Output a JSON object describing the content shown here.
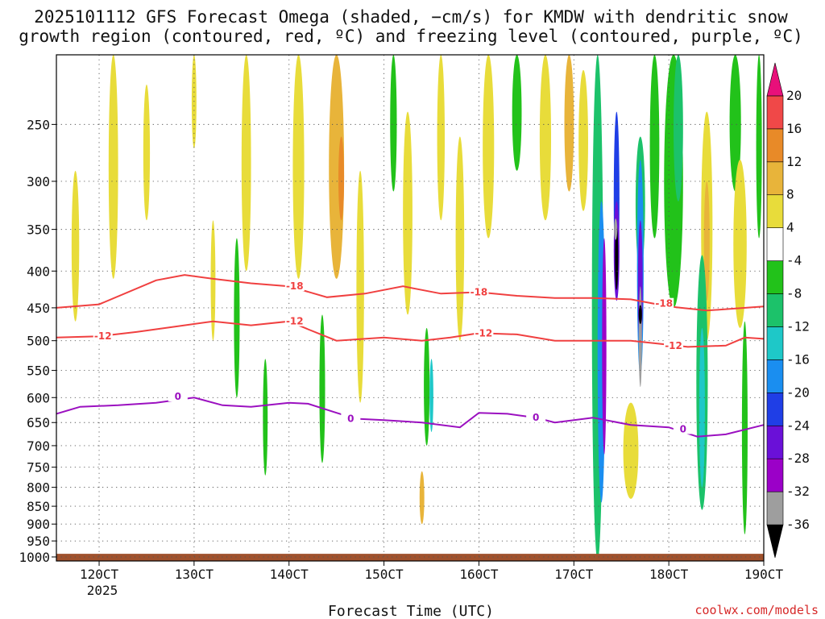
{
  "chart_data": {
    "type": "heatmap",
    "title_line1": "2025101112 GFS Forecast Omega (shaded, −cm/s) for KMDW with dendritic snow",
    "title_line2": "growth region (contoured, red, ºC) and freezing level (contoured, purple, ºC)",
    "xlabel": "Forecast Time (UTC)",
    "x_year_label": "2025",
    "x_ticks": [
      {
        "label": "120CT",
        "value": 120
      },
      {
        "label": "130CT",
        "value": 130
      },
      {
        "label": "140CT",
        "value": 140
      },
      {
        "label": "150CT",
        "value": 150
      },
      {
        "label": "160CT",
        "value": 160
      },
      {
        "label": "170CT",
        "value": 170
      },
      {
        "label": "180CT",
        "value": 180
      },
      {
        "label": "190CT",
        "value": 190
      }
    ],
    "xlim": [
      115.5,
      190
    ],
    "y_ticks": [
      "250",
      "300",
      "350",
      "400",
      "450",
      "500",
      "550",
      "600",
      "650",
      "700",
      "750",
      "800",
      "850",
      "900",
      "950",
      "1000"
    ],
    "ylim_hpa": [
      200,
      1013
    ],
    "y_scale": "log-pressure",
    "grid": true,
    "colorbar": {
      "colors": [
        "#000000",
        "#9e9e9e",
        "#9b00c8",
        "#6a10d8",
        "#1f3ee6",
        "#1a8ef0",
        "#1ec8c8",
        "#1cc26a",
        "#22c21a",
        "#ffffff",
        "#e8dc3a",
        "#e8b43a",
        "#e88a28",
        "#f04848",
        "#e8107a"
      ],
      "labels": [
        "-36",
        "-32",
        "-28",
        "-24",
        "-20",
        "-16",
        "-12",
        "-8",
        "-4",
        "4",
        "8",
        "12",
        "16",
        "20"
      ],
      "extend": "both"
    },
    "omega_cells": [
      {
        "x": 117.5,
        "p": 380,
        "dx": 0.8,
        "dp": 90,
        "level": "4-8"
      },
      {
        "x": 121.5,
        "p": 300,
        "dx": 1.0,
        "dp": 110,
        "level": "4-8"
      },
      {
        "x": 125,
        "p": 280,
        "dx": 0.7,
        "dp": 60,
        "level": "4-8"
      },
      {
        "x": 130,
        "p": 230,
        "dx": 0.5,
        "dp": 40,
        "level": "4-8"
      },
      {
        "x": 132,
        "p": 420,
        "dx": 0.5,
        "dp": 80,
        "level": "4-8"
      },
      {
        "x": 134.5,
        "p": 480,
        "dx": 0.6,
        "dp": 120,
        "level": "-4--8"
      },
      {
        "x": 135.5,
        "p": 300,
        "dx": 1.0,
        "dp": 100,
        "level": "4-8"
      },
      {
        "x": 137.5,
        "p": 650,
        "dx": 0.5,
        "dp": 120,
        "level": "-4--8"
      },
      {
        "x": 141,
        "p": 280,
        "dx": 1.2,
        "dp": 130,
        "level": "4-8"
      },
      {
        "x": 145,
        "p": 300,
        "dx": 1.6,
        "dp": 110,
        "level": "8-12"
      },
      {
        "x": 145.5,
        "p": 300,
        "dx": 0.6,
        "dp": 40,
        "level": "12-16"
      },
      {
        "x": 143.5,
        "p": 600,
        "dx": 0.6,
        "dp": 140,
        "level": "-4--8"
      },
      {
        "x": 147.5,
        "p": 450,
        "dx": 0.8,
        "dp": 160,
        "level": "4-8"
      },
      {
        "x": 151,
        "p": 240,
        "dx": 0.7,
        "dp": 70,
        "level": "-4--8"
      },
      {
        "x": 152.5,
        "p": 350,
        "dx": 1.0,
        "dp": 110,
        "level": "4-8"
      },
      {
        "x": 154.5,
        "p": 590,
        "dx": 0.6,
        "dp": 110,
        "level": "-4--8"
      },
      {
        "x": 155,
        "p": 600,
        "dx": 0.4,
        "dp": 70,
        "level": "-12--16"
      },
      {
        "x": 154,
        "p": 830,
        "dx": 0.5,
        "dp": 70,
        "level": "8-12"
      },
      {
        "x": 156,
        "p": 260,
        "dx": 0.8,
        "dp": 80,
        "level": "4-8"
      },
      {
        "x": 158,
        "p": 380,
        "dx": 0.9,
        "dp": 120,
        "level": "4-8"
      },
      {
        "x": 161,
        "p": 280,
        "dx": 1.2,
        "dp": 80,
        "level": "4-8"
      },
      {
        "x": 164,
        "p": 230,
        "dx": 1.0,
        "dp": 60,
        "level": "-4--8"
      },
      {
        "x": 167,
        "p": 250,
        "dx": 1.2,
        "dp": 90,
        "level": "4-8"
      },
      {
        "x": 169.5,
        "p": 230,
        "dx": 1.0,
        "dp": 80,
        "level": "8-12"
      },
      {
        "x": 171,
        "p": 270,
        "dx": 1.0,
        "dp": 60,
        "level": "4-8"
      },
      {
        "x": 172.5,
        "p": 620,
        "dx": 1.2,
        "dp": 420,
        "level": "-8--12"
      },
      {
        "x": 172.9,
        "p": 580,
        "dx": 0.8,
        "dp": 260,
        "level": "-16--20"
      },
      {
        "x": 173.2,
        "p": 540,
        "dx": 0.45,
        "dp": 180,
        "level": "-28--32"
      },
      {
        "x": 174.5,
        "p": 330,
        "dx": 0.6,
        "dp": 90,
        "level": "-20--24"
      },
      {
        "x": 174.5,
        "p": 380,
        "dx": 0.6,
        "dp": 60,
        "level": "-24--28"
      },
      {
        "x": 174.5,
        "p": 385,
        "dx": 0.3,
        "dp": 40,
        "level": "<-36"
      },
      {
        "x": 174.4,
        "p": 350,
        "dx": 0.3,
        "dp": 12,
        "level": "-32--36"
      },
      {
        "x": 176,
        "p": 720,
        "dx": 1.6,
        "dp": 110,
        "level": "4-8"
      },
      {
        "x": 177,
        "p": 330,
        "dx": 1.0,
        "dp": 70,
        "level": "-8--12"
      },
      {
        "x": 177,
        "p": 420,
        "dx": 0.7,
        "dp": 140,
        "level": "-16--20"
      },
      {
        "x": 177,
        "p": 430,
        "dx": 0.5,
        "dp": 90,
        "level": "-24--28"
      },
      {
        "x": 177,
        "p": 500,
        "dx": 0.3,
        "dp": 80,
        "level": "-32--36"
      },
      {
        "x": 177,
        "p": 460,
        "dx": 0.22,
        "dp": 14,
        "level": "<-36"
      },
      {
        "x": 178.5,
        "p": 270,
        "dx": 1.0,
        "dp": 90,
        "level": "-4--8"
      },
      {
        "x": 180.5,
        "p": 300,
        "dx": 2.0,
        "dp": 150,
        "level": "-4--8"
      },
      {
        "x": 181,
        "p": 260,
        "dx": 1.0,
        "dp": 60,
        "level": "-8--12"
      },
      {
        "x": 184,
        "p": 370,
        "dx": 1.2,
        "dp": 130,
        "level": "4-8"
      },
      {
        "x": 184,
        "p": 370,
        "dx": 0.6,
        "dp": 70,
        "level": "8-12"
      },
      {
        "x": 183.5,
        "p": 620,
        "dx": 1.2,
        "dp": 240,
        "level": "-8--12"
      },
      {
        "x": 183.5,
        "p": 640,
        "dx": 0.6,
        "dp": 160,
        "level": "-12--16"
      },
      {
        "x": 187,
        "p": 240,
        "dx": 1.2,
        "dp": 70,
        "level": "-4--8"
      },
      {
        "x": 187.5,
        "p": 380,
        "dx": 1.4,
        "dp": 100,
        "level": "4-8"
      },
      {
        "x": 188,
        "p": 700,
        "dx": 0.6,
        "dp": 230,
        "level": "-4--8"
      },
      {
        "x": 189.5,
        "p": 260,
        "dx": 0.6,
        "dp": 100,
        "level": "-4--8"
      }
    ],
    "contours": [
      {
        "name": "-18",
        "color": "#f04040",
        "points": [
          [
            115.5,
            450
          ],
          [
            120,
            445
          ],
          [
            126,
            412
          ],
          [
            129,
            405
          ],
          [
            132,
            410
          ],
          [
            136,
            416
          ],
          [
            140,
            420
          ],
          [
            144,
            435
          ],
          [
            148,
            430
          ],
          [
            152,
            420
          ],
          [
            156,
            430
          ],
          [
            160,
            428
          ],
          [
            164,
            433
          ],
          [
            168,
            436
          ],
          [
            172,
            436
          ],
          [
            176,
            438
          ],
          [
            180,
            448
          ],
          [
            184,
            454
          ],
          [
            186,
            452
          ],
          [
            190,
            448
          ]
        ],
        "labels": [
          {
            "x": 140.6,
            "p": 420,
            "text": "-18"
          },
          {
            "x": 160,
            "p": 428,
            "text": "-18"
          },
          {
            "x": 179.5,
            "p": 444,
            "text": "-18"
          }
        ]
      },
      {
        "name": "-12",
        "color": "#f04040",
        "points": [
          [
            115.5,
            495
          ],
          [
            120,
            493
          ],
          [
            124,
            486
          ],
          [
            128,
            478
          ],
          [
            132,
            470
          ],
          [
            136,
            476
          ],
          [
            140,
            470
          ],
          [
            142,
            482
          ],
          [
            145,
            500
          ],
          [
            150,
            495
          ],
          [
            154,
            500
          ],
          [
            157,
            495
          ],
          [
            160,
            488
          ],
          [
            164,
            490
          ],
          [
            168,
            500
          ],
          [
            172,
            500
          ],
          [
            176,
            500
          ],
          [
            179,
            505
          ],
          [
            182,
            510
          ],
          [
            186,
            508
          ],
          [
            188,
            495
          ],
          [
            190,
            497
          ]
        ],
        "labels": [
          {
            "x": 120.4,
            "p": 493,
            "text": "-12"
          },
          {
            "x": 140.6,
            "p": 470,
            "text": "-12"
          },
          {
            "x": 160.5,
            "p": 488,
            "text": "-12"
          },
          {
            "x": 180.5,
            "p": 508,
            "text": "-12"
          }
        ]
      },
      {
        "name": "0",
        "color": "#9b10c0",
        "points": [
          [
            115.5,
            632
          ],
          [
            118,
            618
          ],
          [
            122,
            615
          ],
          [
            126,
            610
          ],
          [
            130,
            600
          ],
          [
            133,
            615
          ],
          [
            136,
            618
          ],
          [
            140,
            610
          ],
          [
            142,
            612
          ],
          [
            145,
            630
          ],
          [
            147,
            642
          ],
          [
            150,
            645
          ],
          [
            154,
            650
          ],
          [
            158,
            660
          ],
          [
            160,
            630
          ],
          [
            163,
            632
          ],
          [
            166,
            640
          ],
          [
            168,
            650
          ],
          [
            172,
            640
          ],
          [
            176,
            655
          ],
          [
            180,
            660
          ],
          [
            183,
            680
          ],
          [
            186,
            675
          ],
          [
            190,
            655
          ]
        ],
        "labels": [
          {
            "x": 128.3,
            "p": 598,
            "text": "0"
          },
          {
            "x": 146.5,
            "p": 642,
            "text": "0"
          },
          {
            "x": 166,
            "p": 640,
            "text": "0"
          },
          {
            "x": 181.5,
            "p": 664,
            "text": "0"
          }
        ]
      }
    ],
    "surface": {
      "p_top": 990,
      "color": "#a0522d"
    }
  },
  "credit": "coolwx.com/models"
}
